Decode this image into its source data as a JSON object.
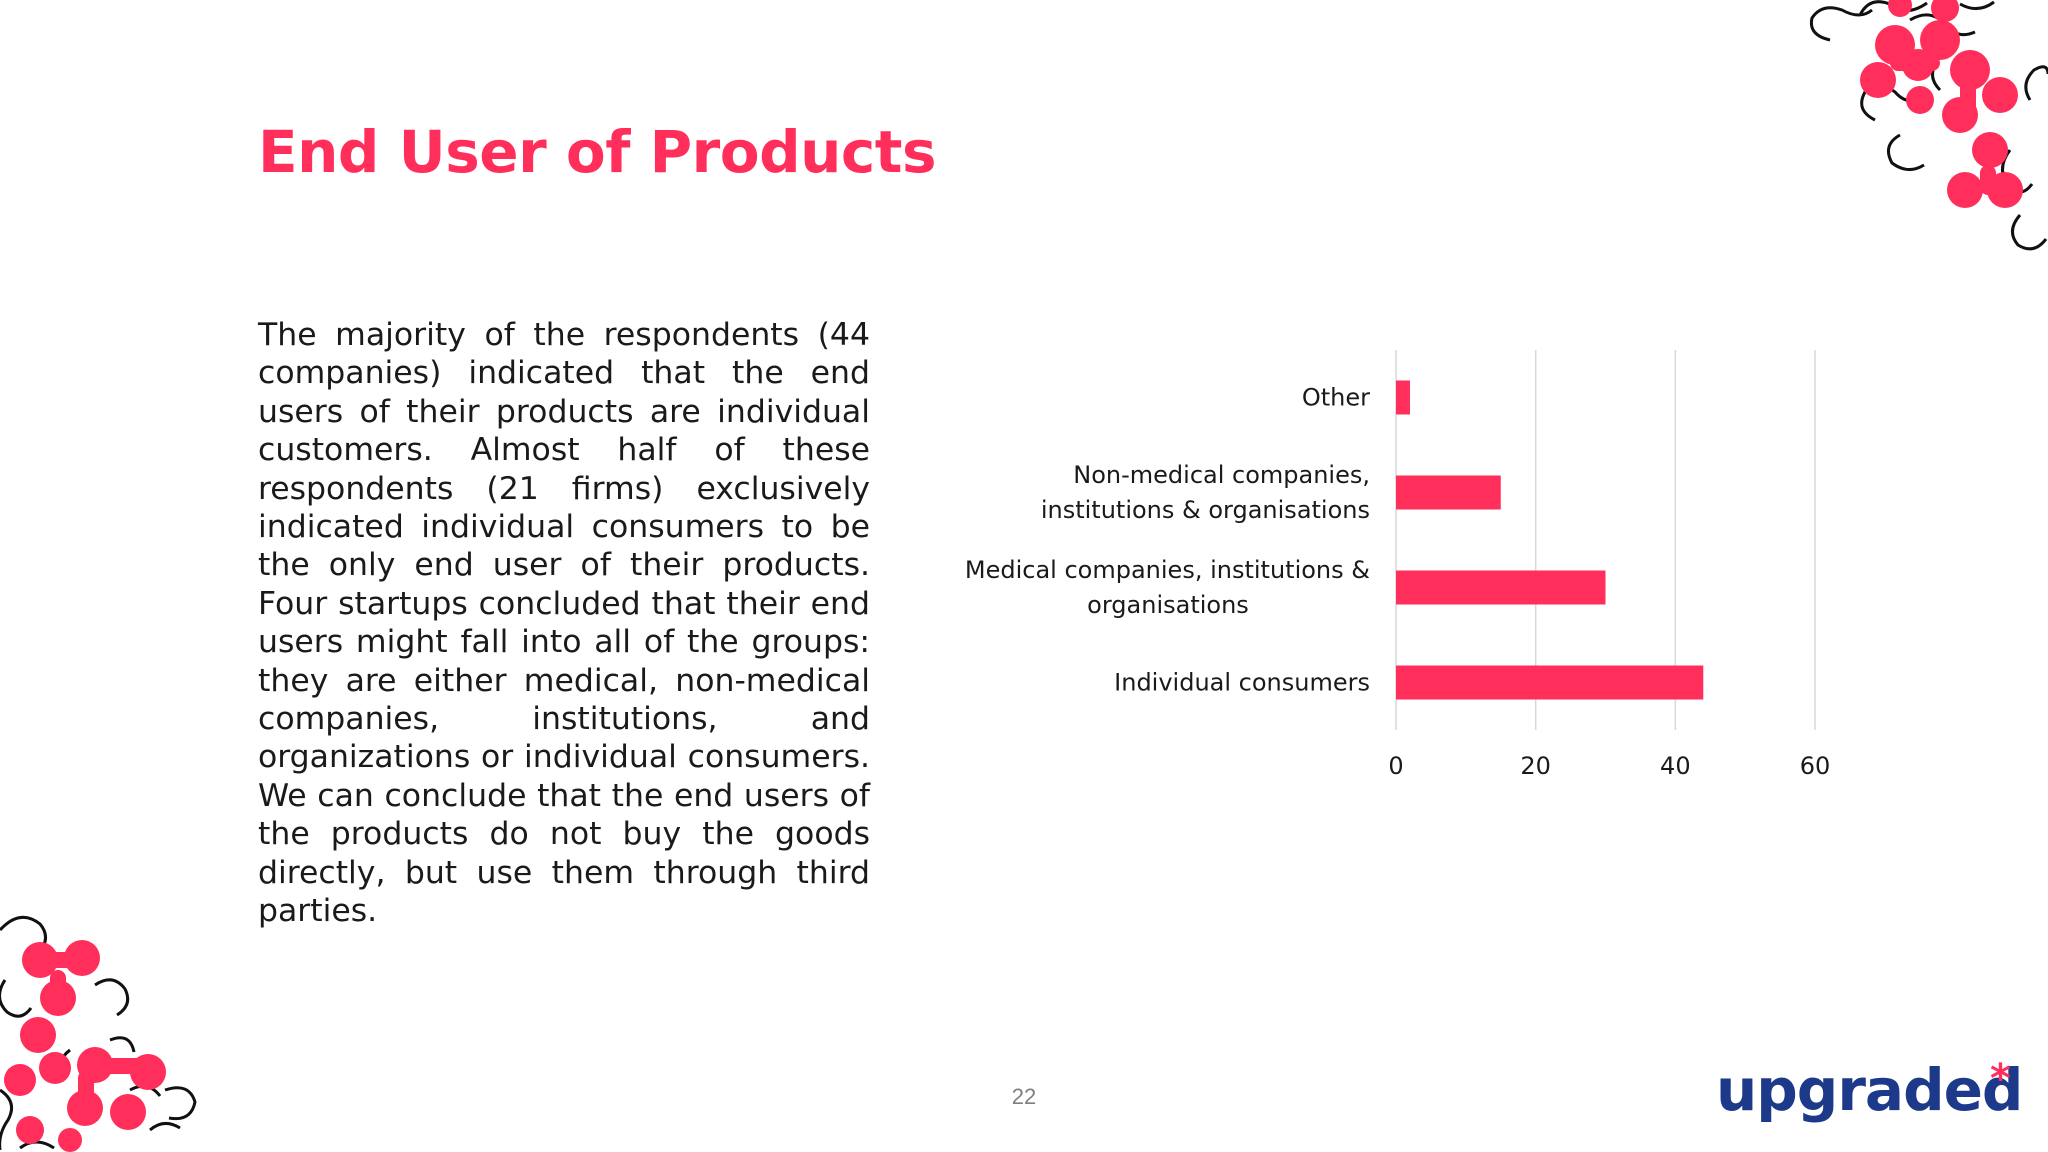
{
  "slide": {
    "title": "End User of Products",
    "body": "The majority of the respondents (44 companies) indicated that the end users of their products are individual customers. Almost half of these respondents (21 firms) exclusively indicated individual consumers to be the only end user of their products.  Four startups concluded that their end users might fall into all of the groups: they are either medical, non-medical companies, institutions, and organizations or individual consumers. We can conclude that the end users of the products do not buy the goods directly, but use them through third parties.",
    "page_number": "22",
    "logo": {
      "text": "upgraded",
      "mark": "*"
    }
  },
  "colors": {
    "accent": "#ff2e5a",
    "brand_blue": "#1d3a8a",
    "text": "#1a1a1a",
    "grid": "#d9d9d9"
  },
  "chart_data": {
    "type": "bar",
    "orientation": "horizontal",
    "categories": [
      [
        "Other"
      ],
      [
        "Non-medical companies,",
        "institutions & organisations"
      ],
      [
        "Medical companies, institutions &",
        "organisations"
      ],
      [
        "Individual consumers"
      ]
    ],
    "values": [
      2,
      15,
      30,
      44
    ],
    "xlim": [
      0,
      60
    ],
    "xticks": [
      0,
      20,
      40,
      60
    ],
    "grid": true,
    "legend": "none"
  }
}
